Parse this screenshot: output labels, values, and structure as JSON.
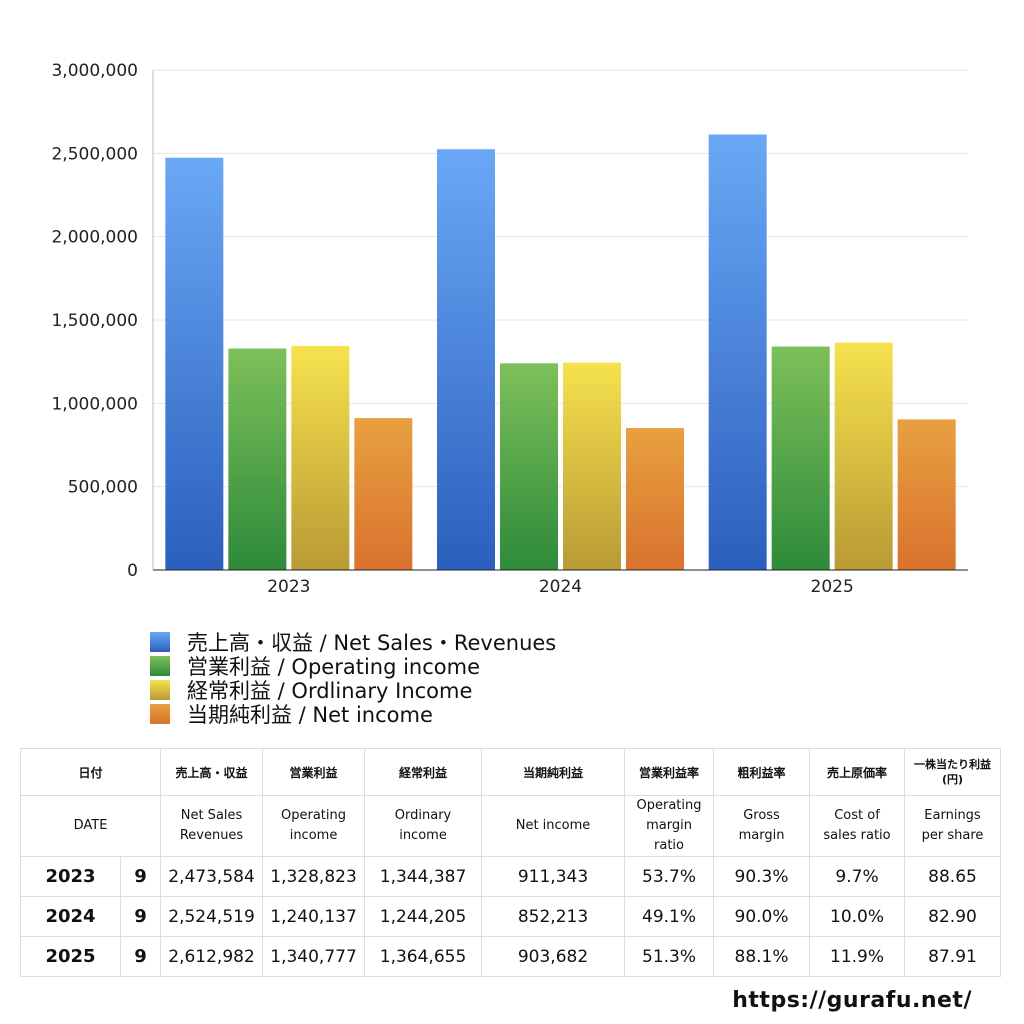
{
  "chart_data": {
    "type": "bar",
    "categories": [
      "2023",
      "2024",
      "2025"
    ],
    "series": [
      {
        "name": "売上高・収益 / Net Sales・Revenues",
        "values": [
          2473584,
          2524519,
          2612982
        ],
        "color_top": "#6aa8f5",
        "color_bottom": "#2b5fbd"
      },
      {
        "name": "営業利益 / Operating income",
        "values": [
          1328823,
          1240137,
          1340777
        ],
        "color_top": "#7dc05a",
        "color_bottom": "#2e8a3a"
      },
      {
        "name": "経常利益 / Ordlinary Income",
        "values": [
          1344387,
          1244205,
          1364655
        ],
        "color_top": "#f6e24e",
        "color_bottom": "#b99a35"
      },
      {
        "name": "当期純利益 / Net income",
        "values": [
          911343,
          852213,
          903682
        ],
        "color_top": "#e8a040",
        "color_bottom": "#d9722e"
      }
    ],
    "ylim": [
      0,
      3000000
    ],
    "yticks": [
      "0",
      "500,000",
      "1,000,000",
      "1,500,000",
      "2,000,000",
      "2,500,000",
      "3,000,000"
    ],
    "grid": true,
    "legend_position": "bottom-left"
  },
  "table": {
    "headers_jp": [
      "日付",
      "売上高・収益",
      "営業利益",
      "経常利益",
      "当期純利益",
      "営業利益率",
      "粗利益率",
      "売上原価率",
      "一株当たり利益",
      "(円)"
    ],
    "headers_en": [
      "DATE",
      "Net Sales",
      "Revenues",
      "Operating",
      "income",
      "Ordinary",
      "income",
      "Net income",
      "Operating",
      "margin",
      "ratio",
      "Gross",
      "margin",
      "Cost of",
      "sales ratio",
      "Earnings",
      "per share"
    ],
    "rows": [
      {
        "year": "2023",
        "month": "9",
        "sales": "2,473,584",
        "operating": "1,328,823",
        "ordinary": "1,344,387",
        "net": "911,343",
        "op_margin": "53.7%",
        "gross_margin": "90.3%",
        "cost_ratio": "9.7%",
        "eps": "88.65"
      },
      {
        "year": "2024",
        "month": "9",
        "sales": "2,524,519",
        "operating": "1,240,137",
        "ordinary": "1,244,205",
        "net": "852,213",
        "op_margin": "49.1%",
        "gross_margin": "90.0%",
        "cost_ratio": "10.0%",
        "eps": "82.90"
      },
      {
        "year": "2025",
        "month": "9",
        "sales": "2,612,982",
        "operating": "1,340,777",
        "ordinary": "1,364,655",
        "net": "903,682",
        "op_margin": "51.3%",
        "gross_margin": "88.1%",
        "cost_ratio": "11.9%",
        "eps": "87.91"
      }
    ]
  },
  "footer": {
    "url": "https://gurafu.net/"
  }
}
